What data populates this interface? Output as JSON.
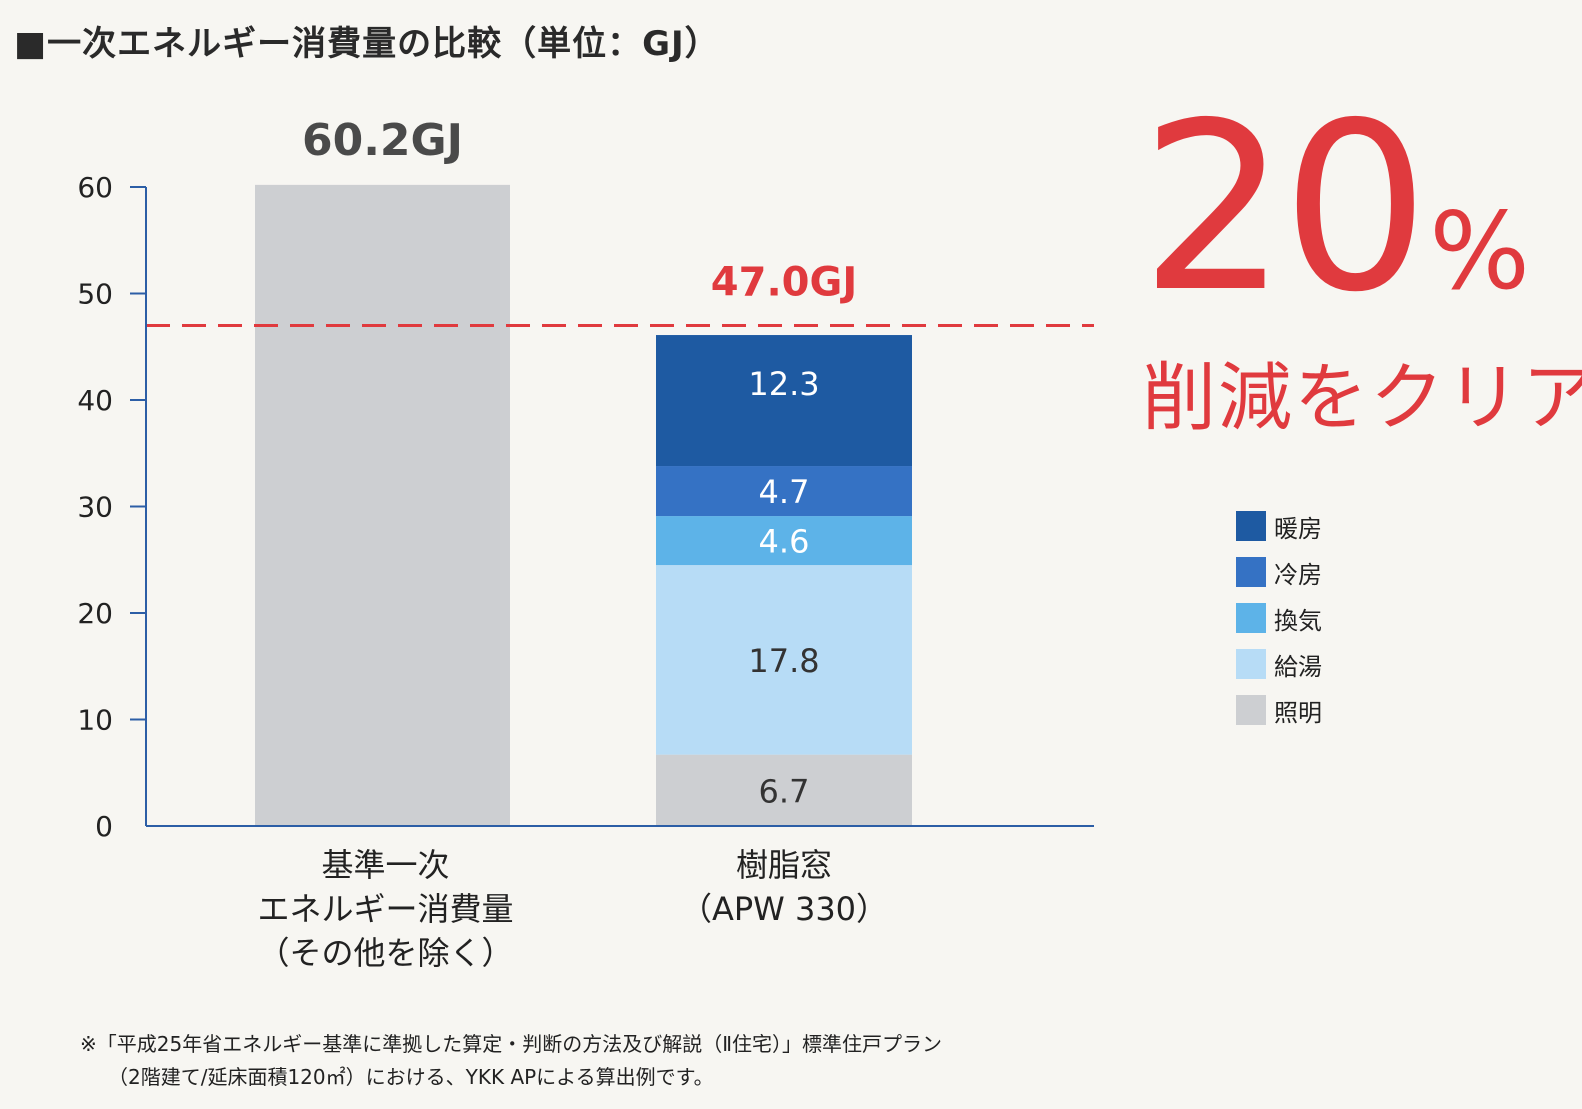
{
  "title": "■一次エネルギー消費量の比較（単位：GJ）",
  "callout": {
    "percent": "20",
    "percent_symbol": "%",
    "text": "削減をクリア"
  },
  "footnote": {
    "line1": "※「平成25年省エネルギー基準に準拠した算定・判断の方法及び解説（Ⅱ住宅）」標準住戸プラン",
    "line2": "（2階建て/延床面積120㎡）における、YKK APによる算出例です。"
  },
  "colors": {
    "heating": "#1e5aa2",
    "cooling": "#3572c4",
    "ventilation": "#5db3e8",
    "hot_water": "#b7dcf6",
    "lighting": "#cdcfd2",
    "reference_bar": "#cdcfd2",
    "target_line": "#e03a3e",
    "axis": "#2c5ea6"
  },
  "chart_data": {
    "type": "bar",
    "stacked": true,
    "ylim": [
      0,
      60
    ],
    "yticks": [
      0,
      10,
      20,
      30,
      40,
      50,
      60
    ],
    "grid": false,
    "legend_position": "right",
    "categories": [
      [
        "基準一次",
        "エネルギー消費量",
        "（その他を除く）"
      ],
      [
        "樹脂窓",
        "（APW 330）"
      ]
    ],
    "series": [
      {
        "name": "照明",
        "color_key": "lighting",
        "values": [
          null,
          6.7
        ]
      },
      {
        "name": "給湯",
        "color_key": "hot_water",
        "values": [
          null,
          17.8
        ]
      },
      {
        "name": "換気",
        "color_key": "ventilation",
        "values": [
          null,
          4.6
        ]
      },
      {
        "name": "冷房",
        "color_key": "cooling",
        "values": [
          null,
          4.7
        ]
      },
      {
        "name": "暖房",
        "color_key": "heating",
        "values": [
          null,
          12.3
        ]
      }
    ],
    "reference_bar": {
      "category_index": 0,
      "value": 60.2,
      "label": "60.2GJ"
    },
    "target_line": {
      "value": 47.0,
      "label": "47.0GJ"
    },
    "legend_order": [
      "暖房",
      "冷房",
      "換気",
      "給湯",
      "照明"
    ]
  }
}
